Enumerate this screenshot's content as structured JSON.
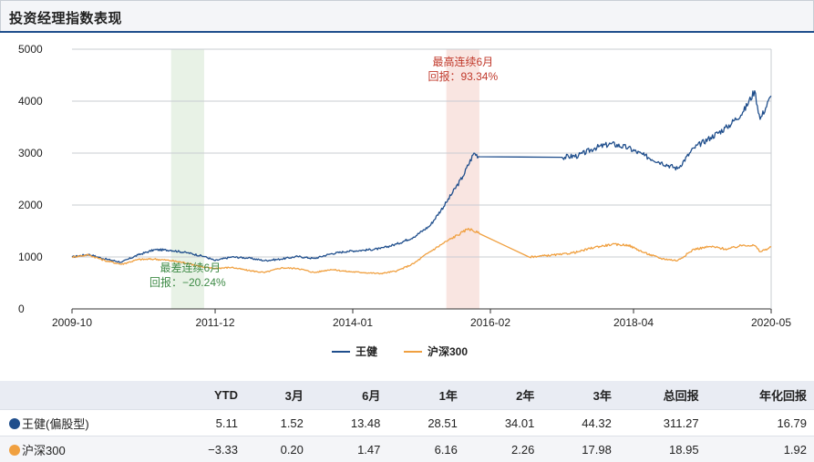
{
  "title": "投资经理指数表现",
  "colors": {
    "wang": "#1f4e8c",
    "hs300": "#f0a040",
    "green_band": "#e8f2e6",
    "red_band": "#f9e5e1",
    "green_text": "#3d8a45",
    "red_text": "#c0392b"
  },
  "chart_data": {
    "type": "line",
    "ylim": [
      0,
      5000
    ],
    "y_ticks": [
      "0",
      "1000",
      "2000",
      "3000",
      "4000",
      "5000"
    ],
    "x_ticks": [
      "2009-10",
      "2011-12",
      "2014-01",
      "2016-02",
      "2018-04",
      "2020-05"
    ],
    "legend_position": "bottom",
    "series": [
      {
        "name": "王健",
        "color": "#1f4e8c",
        "points": [
          [
            "2009-10",
            1000
          ],
          [
            "2010-01",
            1050
          ],
          [
            "2010-04",
            960
          ],
          [
            "2010-07",
            900
          ],
          [
            "2010-10",
            1040
          ],
          [
            "2011-01",
            1140
          ],
          [
            "2011-04",
            1130
          ],
          [
            "2011-07",
            1080
          ],
          [
            "2011-10",
            1010
          ],
          [
            "2011-12",
            930
          ],
          [
            "2012-03",
            1000
          ],
          [
            "2012-06",
            980
          ],
          [
            "2012-09",
            930
          ],
          [
            "2012-12",
            960
          ],
          [
            "2013-03",
            1010
          ],
          [
            "2013-06",
            970
          ],
          [
            "2013-09",
            1060
          ],
          [
            "2013-12",
            1110
          ],
          [
            "2014-03",
            1130
          ],
          [
            "2014-06",
            1160
          ],
          [
            "2014-09",
            1250
          ],
          [
            "2014-12",
            1380
          ],
          [
            "2015-03",
            1600
          ],
          [
            "2015-06",
            2050
          ],
          [
            "2015-09",
            2550
          ],
          [
            "2015-11",
            3000
          ],
          [
            "2015-12",
            2930
          ],
          [
            "2017-03",
            2920
          ],
          [
            "2017-06",
            2950
          ],
          [
            "2017-09",
            3100
          ],
          [
            "2017-12",
            3180
          ],
          [
            "2018-03",
            3100
          ],
          [
            "2018-06",
            2950
          ],
          [
            "2018-09",
            2820
          ],
          [
            "2018-12",
            2700
          ],
          [
            "2019-03",
            3100
          ],
          [
            "2019-06",
            3300
          ],
          [
            "2019-09",
            3500
          ],
          [
            "2019-12",
            3800
          ],
          [
            "2020-02",
            4200
          ],
          [
            "2020-03",
            3650
          ],
          [
            "2020-05",
            4100
          ]
        ]
      },
      {
        "name": "沪深300",
        "color": "#f0a040",
        "points": [
          [
            "2009-10",
            1000
          ],
          [
            "2010-01",
            1040
          ],
          [
            "2010-04",
            930
          ],
          [
            "2010-07",
            860
          ],
          [
            "2010-10",
            950
          ],
          [
            "2011-01",
            960
          ],
          [
            "2011-04",
            930
          ],
          [
            "2011-07",
            880
          ],
          [
            "2011-10",
            800
          ],
          [
            "2011-12",
            780
          ],
          [
            "2012-03",
            800
          ],
          [
            "2012-06",
            740
          ],
          [
            "2012-09",
            700
          ],
          [
            "2012-12",
            790
          ],
          [
            "2013-03",
            780
          ],
          [
            "2013-06",
            700
          ],
          [
            "2013-09",
            760
          ],
          [
            "2013-12",
            720
          ],
          [
            "2014-03",
            700
          ],
          [
            "2014-06",
            680
          ],
          [
            "2014-09",
            730
          ],
          [
            "2014-12",
            870
          ],
          [
            "2015-03",
            1100
          ],
          [
            "2015-06",
            1300
          ],
          [
            "2015-09",
            1480
          ],
          [
            "2015-10",
            1550
          ],
          [
            "2015-12",
            1450
          ],
          [
            "2016-09",
            1000
          ],
          [
            "2017-03",
            1050
          ],
          [
            "2017-06",
            1100
          ],
          [
            "2017-09",
            1190
          ],
          [
            "2017-12",
            1240
          ],
          [
            "2018-03",
            1230
          ],
          [
            "2018-06",
            1080
          ],
          [
            "2018-09",
            970
          ],
          [
            "2018-12",
            930
          ],
          [
            "2019-03",
            1150
          ],
          [
            "2019-06",
            1200
          ],
          [
            "2019-09",
            1150
          ],
          [
            "2019-12",
            1230
          ],
          [
            "2020-02",
            1220
          ],
          [
            "2020-03",
            1100
          ],
          [
            "2020-05",
            1190
          ]
        ]
      }
    ],
    "annotations": [
      {
        "id": "best",
        "start": "2015-06",
        "end": "2015-12",
        "label1": "最高连续6月",
        "label2": "回报：93.34%"
      },
      {
        "id": "worst",
        "start": "2011-04",
        "end": "2011-10",
        "label1": "最差连续6月",
        "label2": "回报：−20.24%"
      }
    ]
  },
  "table": {
    "headers": [
      "",
      "YTD",
      "3月",
      "6月",
      "1年",
      "2年",
      "3年",
      "总回报",
      "年化回报"
    ],
    "rows": [
      {
        "name": "王健(偏股型)",
        "color": "#1f4e8c",
        "values": [
          "5.11",
          "1.52",
          "13.48",
          "28.51",
          "34.01",
          "44.32",
          "311.27",
          "16.79"
        ]
      },
      {
        "name": "沪深300",
        "color": "#f0a040",
        "values": [
          "−3.33",
          "0.20",
          "1.47",
          "6.16",
          "2.26",
          "17.98",
          "18.95",
          "1.92"
        ]
      }
    ]
  }
}
